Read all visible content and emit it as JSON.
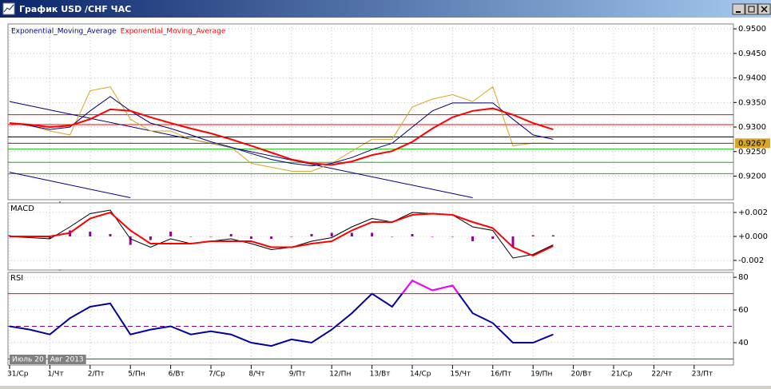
{
  "window": {
    "title": "График USD /CHF ЧАС",
    "date_flag": [
      "Июль 20",
      "Авг 2013"
    ]
  },
  "chart_data": [
    {
      "type": "line",
      "categories": [
        "31/Ср",
        null,
        "1/Чт",
        null,
        "2/Пт",
        null,
        "5/Пн",
        null,
        "6/Вт",
        null,
        "7/Ср",
        null,
        "8/Чт",
        null,
        "9/Пт",
        null,
        "12/Пн",
        null,
        "13/Вт",
        null,
        "14/Ср",
        null,
        "15/Чт",
        null,
        "16/Пт",
        null,
        "19/Пн",
        null,
        "20/Вт",
        null,
        "21/Ср",
        null,
        "22/Чт",
        null,
        "23/Пт",
        null
      ],
      "series": [
        {
          "color": "#daa520",
          "values": [
            0.9308,
            0.9303,
            0.9292,
            0.9284,
            0.9374,
            0.9382,
            0.9316,
            0.9292,
            0.9292,
            0.9275,
            0.9267,
            0.9259,
            0.9226,
            0.9218,
            0.921,
            0.921,
            0.9226,
            0.9251,
            0.9275,
            0.9275,
            0.9341,
            0.9357,
            0.9366,
            0.9352,
            0.9382,
            0.9262,
            0.9267,
            0.9267,
            null,
            null,
            null,
            null,
            null,
            null,
            null,
            null
          ]
        },
        {
          "name": "Exponential_Moving_Average",
          "color": "#00007f",
          "values": [
            0.9308,
            0.9303,
            0.9295,
            0.93,
            0.9333,
            0.9362,
            0.9333,
            0.9308,
            0.9297,
            0.9284,
            0.927,
            0.9259,
            0.9246,
            0.9234,
            0.9226,
            0.9221,
            0.9226,
            0.9238,
            0.9254,
            0.9267,
            0.93,
            0.9333,
            0.9349,
            0.9349,
            0.9349,
            0.9316,
            0.9284,
            0.9275,
            null,
            null,
            null,
            null,
            null,
            null,
            null,
            null
          ]
        },
        {
          "name": "Exponential_Moving_Average",
          "color": "#ff0000",
          "width": 2,
          "values": [
            0.9308,
            0.9305,
            0.93,
            0.9303,
            0.9316,
            0.9336,
            0.9333,
            0.932,
            0.9308,
            0.9297,
            0.9287,
            0.9275,
            0.9262,
            0.9248,
            0.9234,
            0.9226,
            0.9223,
            0.923,
            0.9243,
            0.9251,
            0.927,
            0.9297,
            0.932,
            0.9333,
            0.9338,
            0.9325,
            0.9308,
            0.9295,
            null,
            null,
            null,
            null,
            null,
            null,
            null,
            null
          ]
        }
      ],
      "ylim": [
        0.9152,
        0.951
      ],
      "yticks": [
        {
          "value": 0.92,
          "label": "0.9200"
        },
        {
          "value": 0.925,
          "label": "0.9250"
        },
        {
          "value": 0.93,
          "label": "0.9300"
        },
        {
          "value": 0.935,
          "label": "0.9350"
        },
        {
          "value": 0.94,
          "label": "0.9400"
        },
        {
          "value": 0.945,
          "label": "0.9450"
        },
        {
          "value": 0.95,
          "label": "0.9500"
        }
      ],
      "hlines": [
        {
          "value": 0.9325,
          "color": "#ff0000"
        },
        {
          "value": 0.9305,
          "color": "#ff0000"
        },
        {
          "value": 0.928,
          "color": "#000000"
        },
        {
          "value": 0.9255,
          "color": "#00c000"
        },
        {
          "value": 0.9228,
          "color": "#00c000"
        },
        {
          "value": 0.9205,
          "color": "#00c000"
        }
      ],
      "trendlines": [
        {
          "color": "#00007f",
          "start": {
            "category": 0,
            "value": 0.9352
          },
          "end": {
            "category": 23,
            "value": 0.9156
          }
        },
        {
          "color": "#00007f",
          "start": {
            "category": 0,
            "value": 0.9208
          },
          "end": {
            "category": 6,
            "value": 0.9156
          }
        }
      ],
      "last_price": {
        "value": 0.9267,
        "color": "#daa520"
      },
      "grid": true
    },
    {
      "type": "line",
      "title": "MACD",
      "series": [
        {
          "type": "bar",
          "color": "#990099",
          "values": [
            0.0001,
            -0.0001,
            -0.0002,
            0.0005,
            0.0004,
            0.0002,
            -0.0007,
            -0.0003,
            0.0004,
            0,
            0,
            0.0002,
            -0.0002,
            -0.0002,
            0,
            0.0002,
            0.0003,
            0.0003,
            0.0003,
            0,
            0.0002,
            0,
            0,
            -0.0004,
            -0.0002,
            -0.0009,
            0.0001,
            0.0001,
            null,
            null,
            null,
            null,
            null,
            null,
            null,
            null
          ]
        },
        {
          "color": "#000000",
          "values": [
            0,
            -0.0001,
            -0.0002,
            0.0008,
            0.0019,
            0.0022,
            -0.0002,
            -0.0009,
            -0.0002,
            -0.0006,
            -0.0004,
            -0.0002,
            -0.0006,
            -0.0011,
            -0.0009,
            -0.0004,
            -0.0001,
            0.0008,
            0.0015,
            0.0012,
            0.002,
            0.0019,
            0.0018,
            0.0008,
            0.0005,
            -0.0018,
            -0.0015,
            -0.0007,
            null,
            null,
            null,
            null,
            null,
            null,
            null,
            null
          ]
        },
        {
          "color": "#ff0000",
          "width": 2,
          "values": [
            0,
            0,
            0,
            0.0003,
            0.0015,
            0.002,
            0.0005,
            -0.0006,
            -0.0006,
            -0.0006,
            -0.0004,
            -0.0004,
            -0.0004,
            -0.0009,
            -0.0009,
            -0.0006,
            -0.0004,
            0.0005,
            0.0012,
            0.0012,
            0.0018,
            0.0019,
            0.0018,
            0.0012,
            0.0007,
            -0.0009,
            -0.0016,
            -0.0008,
            null,
            null,
            null,
            null,
            null,
            null,
            null,
            null
          ]
        }
      ],
      "ylim": [
        -0.0028,
        0.0028
      ],
      "yticks": [
        {
          "value": -0.002,
          "label": "-0.002"
        },
        {
          "value": 0,
          "label": "+0.000"
        },
        {
          "value": 0.002,
          "label": "+0.002"
        }
      ],
      "grid": true
    },
    {
      "type": "line",
      "title": "RSI",
      "series": [
        {
          "color": "#0000a0",
          "highlight_color": "#ff00ff",
          "width": 2,
          "values": [
            50,
            48,
            45,
            55,
            62,
            64,
            45,
            48,
            50,
            45,
            47,
            45,
            40,
            38,
            42,
            40,
            48,
            58,
            70,
            62,
            78,
            72,
            75,
            58,
            52,
            40,
            40,
            45,
            null,
            null,
            null,
            null,
            null,
            null,
            null,
            null
          ]
        }
      ],
      "ylim": [
        26.3,
        83
      ],
      "yticks": [
        40,
        60,
        80
      ],
      "hlines": [
        {
          "value": 70,
          "color": "#ff0000"
        },
        {
          "value": 50,
          "color": "#800080",
          "dashed": true
        },
        {
          "value": 30,
          "color": "#008000"
        }
      ],
      "grid": true
    }
  ]
}
